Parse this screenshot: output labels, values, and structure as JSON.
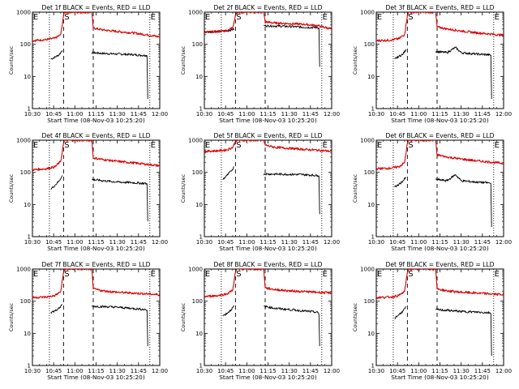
{
  "xticks": [
    "10:30",
    "10:45",
    "11:00",
    "11:15",
    "11:30",
    "11:45",
    "12:00"
  ],
  "yticks": [
    "1",
    "10",
    "100",
    "1000"
  ],
  "ylabel": "Counts/sec",
  "xlabel": "Start Time (08-Nov-03 10:25:20)",
  "marker_labels": [
    "E",
    "S",
    "E"
  ],
  "colors": {
    "events": "#000000",
    "lld": "#dd0000",
    "axes": "#000000",
    "background": "#ffffff"
  },
  "chart_data": [
    {
      "type": "line",
      "title": "Det 1f BLACK = Events, RED = LLD",
      "xlabel": "Start Time (08-Nov-03 10:25:20)",
      "ylabel": "Counts/sec",
      "xrange_min": [
        630,
        720
      ],
      "ylim": [
        1,
        1000
      ],
      "ylog": true,
      "vlines_min": {
        "dotted": [
          642,
          713
        ],
        "dashed": [
          652,
          673
        ]
      },
      "series": [
        {
          "name": "Events",
          "color": "#000000",
          "segments": [
            {
              "x": [
                643,
                646,
                649,
                651
              ],
              "y": [
                35,
                40,
                48,
                65
              ]
            },
            {
              "x": [
                672,
                680,
                690,
                700,
                710,
                711,
                711.5
              ],
              "y": [
                55,
                52,
                50,
                48,
                45,
                44,
                2
              ]
            }
          ]
        },
        {
          "name": "LLD",
          "color": "#dd0000",
          "segments": [
            {
              "x": [
                630,
                640,
                646,
                650,
                652,
                653,
                672,
                673,
                680,
                690,
                700,
                710,
                720
              ],
              "y": [
                130,
                140,
                155,
                200,
                800,
                1000,
                1000,
                320,
                280,
                250,
                230,
                200,
                170
              ]
            }
          ]
        }
      ]
    },
    {
      "type": "line",
      "title": "Det 2f BLACK = Events, RED = LLD",
      "xlabel": "Start Time (08-Nov-03 10:25:20)",
      "ylabel": "Counts/sec",
      "xrange_min": [
        630,
        720
      ],
      "ylim": [
        1,
        1000
      ],
      "ylog": true,
      "vlines_min": {
        "dotted": [
          642,
          713
        ],
        "dashed": [
          652,
          673
        ]
      },
      "series": [
        {
          "name": "Events",
          "color": "#000000",
          "segments": [
            {
              "x": [
                630,
                640,
                646,
                651
              ],
              "y": [
                240,
                250,
                260,
                300
              ]
            },
            {
              "x": [
                672,
                680,
                690,
                700,
                710,
                711,
                711.5
              ],
              "y": [
                380,
                370,
                360,
                340,
                330,
                320,
                20
              ]
            }
          ]
        },
        {
          "name": "LLD",
          "color": "#dd0000",
          "segments": [
            {
              "x": [
                630,
                640,
                646,
                650,
                652,
                653,
                672,
                673,
                680,
                690,
                700,
                710,
                720
              ],
              "y": [
                240,
                250,
                270,
                330,
                800,
                1000,
                1000,
                500,
                460,
                440,
                420,
                380,
                300
              ]
            }
          ]
        }
      ]
    },
    {
      "type": "line",
      "title": "Det 3f BLACK = Events, RED = LLD",
      "xlabel": "Start Time (08-Nov-03 10:25:20)",
      "ylabel": "Counts/sec",
      "xrange_min": [
        630,
        720
      ],
      "ylim": [
        1,
        1000
      ],
      "ylog": true,
      "vlines_min": {
        "dotted": [
          642,
          713
        ],
        "dashed": [
          652,
          673
        ]
      },
      "series": [
        {
          "name": "Events",
          "color": "#000000",
          "segments": [
            {
              "x": [
                643,
                646,
                649,
                651
              ],
              "y": [
                35,
                42,
                50,
                70
              ]
            },
            {
              "x": [
                672,
                680,
                686,
                690,
                700,
                710,
                711,
                711.5
              ],
              "y": [
                60,
                55,
                80,
                55,
                50,
                47,
                45,
                2
              ]
            }
          ]
        },
        {
          "name": "LLD",
          "color": "#dd0000",
          "segments": [
            {
              "x": [
                630,
                640,
                646,
                650,
                652,
                653,
                672,
                673,
                680,
                690,
                700,
                710,
                720
              ],
              "y": [
                130,
                135,
                150,
                200,
                800,
                1000,
                1000,
                350,
                300,
                260,
                230,
                210,
                190
              ]
            }
          ]
        }
      ]
    },
    {
      "type": "line",
      "title": "Det 4f BLACK = Events, RED = LLD",
      "xlabel": "Start Time (08-Nov-03 10:25:20)",
      "ylabel": "Counts/sec",
      "xrange_min": [
        630,
        720
      ],
      "ylim": [
        1,
        1000
      ],
      "ylog": true,
      "vlines_min": {
        "dotted": [
          642,
          713
        ],
        "dashed": [
          652,
          673
        ]
      },
      "series": [
        {
          "name": "Events",
          "color": "#000000",
          "segments": [
            {
              "x": [
                643,
                646,
                649,
                651
              ],
              "y": [
                30,
                40,
                55,
                80
              ]
            },
            {
              "x": [
                672,
                680,
                690,
                700,
                710,
                711,
                711.5
              ],
              "y": [
                60,
                55,
                50,
                48,
                45,
                44,
                3
              ]
            }
          ]
        },
        {
          "name": "LLD",
          "color": "#dd0000",
          "segments": [
            {
              "x": [
                630,
                640,
                646,
                650,
                652,
                653,
                672,
                673,
                680,
                690,
                700,
                710,
                720
              ],
              "y": [
                120,
                130,
                150,
                220,
                800,
                1000,
                1000,
                280,
                250,
                220,
                200,
                180,
                160
              ]
            }
          ]
        }
      ]
    },
    {
      "type": "line",
      "title": "Det 5f BLACK = Events, RED = LLD",
      "xlabel": "Start Time (08-Nov-03 10:25:20)",
      "ylabel": "Counts/sec",
      "xrange_min": [
        630,
        720
      ],
      "ylim": [
        1,
        1000
      ],
      "ylog": true,
      "vlines_min": {
        "dotted": [
          642,
          713
        ],
        "dashed": [
          652,
          673
        ]
      },
      "series": [
        {
          "name": "Events",
          "color": "#000000",
          "segments": [
            {
              "x": [
                643,
                646,
                649,
                651
              ],
              "y": [
                60,
                80,
                110,
                150
              ]
            },
            {
              "x": [
                672,
                680,
                690,
                700,
                710,
                711,
                711.5
              ],
              "y": [
                90,
                88,
                87,
                85,
                80,
                78,
                5
              ]
            }
          ]
        },
        {
          "name": "LLD",
          "color": "#dd0000",
          "segments": [
            {
              "x": [
                630,
                640,
                646,
                650,
                652,
                653,
                672,
                673,
                680,
                690,
                700,
                710,
                720
              ],
              "y": [
                450,
                470,
                500,
                600,
                900,
                1000,
                1000,
                700,
                600,
                560,
                520,
                490,
                450
              ]
            }
          ]
        }
      ]
    },
    {
      "type": "line",
      "title": "Det 6f BLACK = Events, RED = LLD",
      "xlabel": "Start Time (08-Nov-03 10:25:20)",
      "ylabel": "Counts/sec",
      "xrange_min": [
        630,
        720
      ],
      "ylim": [
        1,
        1000
      ],
      "ylog": true,
      "vlines_min": {
        "dotted": [
          642,
          713
        ],
        "dashed": [
          652,
          673
        ]
      },
      "series": [
        {
          "name": "Events",
          "color": "#000000",
          "segments": [
            {
              "x": [
                643,
                646,
                649,
                651
              ],
              "y": [
                35,
                42,
                55,
                70
              ]
            },
            {
              "x": [
                672,
                680,
                686,
                690,
                700,
                710,
                711,
                711.5
              ],
              "y": [
                60,
                55,
                85,
                55,
                50,
                47,
                45,
                2
              ]
            }
          ]
        },
        {
          "name": "LLD",
          "color": "#dd0000",
          "segments": [
            {
              "x": [
                630,
                640,
                646,
                650,
                652,
                653,
                672,
                673,
                680,
                690,
                700,
                710,
                720
              ],
              "y": [
                130,
                135,
                150,
                200,
                800,
                1000,
                1000,
                350,
                300,
                260,
                230,
                210,
                190
              ]
            }
          ]
        }
      ]
    },
    {
      "type": "line",
      "title": "Det 7f BLACK = Events, RED = LLD",
      "xlabel": "Start Time (08-Nov-03 10:25:20)",
      "ylabel": "Counts/sec",
      "xrange_min": [
        630,
        720
      ],
      "ylim": [
        1,
        1000
      ],
      "ylog": true,
      "vlines_min": {
        "dotted": [
          642,
          713
        ],
        "dashed": [
          652,
          673
        ]
      },
      "series": [
        {
          "name": "Events",
          "color": "#000000",
          "segments": [
            {
              "x": [
                643,
                646,
                649,
                651
              ],
              "y": [
                45,
                50,
                60,
                80
              ]
            },
            {
              "x": [
                672,
                680,
                690,
                700,
                710,
                711,
                711.5
              ],
              "y": [
                70,
                68,
                65,
                60,
                55,
                52,
                4
              ]
            }
          ]
        },
        {
          "name": "LLD",
          "color": "#dd0000",
          "segments": [
            {
              "x": [
                630,
                640,
                646,
                650,
                652,
                653,
                672,
                673,
                680,
                690,
                700,
                710,
                720
              ],
              "y": [
                130,
                135,
                150,
                200,
                800,
                1000,
                1000,
                240,
                210,
                190,
                180,
                170,
                160
              ]
            }
          ]
        }
      ]
    },
    {
      "type": "line",
      "title": "Det 8f BLACK = Events, RED = LLD",
      "xlabel": "Start Time (08-Nov-03 10:25:20)",
      "ylabel": "Counts/sec",
      "xrange_min": [
        630,
        720
      ],
      "ylim": [
        1,
        1000
      ],
      "ylog": true,
      "vlines_min": {
        "dotted": [
          642,
          713
        ],
        "dashed": [
          652,
          673
        ]
      },
      "series": [
        {
          "name": "Events",
          "color": "#000000",
          "segments": [
            {
              "x": [
                643,
                646,
                649,
                651
              ],
              "y": [
                35,
                42,
                55,
                70
              ]
            },
            {
              "x": [
                672,
                680,
                690,
                700,
                710,
                711,
                711.5
              ],
              "y": [
                70,
                60,
                55,
                50,
                45,
                40,
                4
              ]
            }
          ]
        },
        {
          "name": "LLD",
          "color": "#dd0000",
          "segments": [
            {
              "x": [
                630,
                640,
                646,
                650,
                652,
                653,
                672,
                673,
                680,
                690,
                700,
                710,
                720
              ],
              "y": [
                140,
                150,
                170,
                220,
                800,
                1000,
                1000,
                260,
                230,
                210,
                200,
                190,
                180
              ]
            }
          ]
        }
      ]
    },
    {
      "type": "line",
      "title": "Det 9f BLACK = Events, RED = LLD",
      "xlabel": "Start Time (08-Nov-03 10:25:20)",
      "ylabel": "Counts/sec",
      "xrange_min": [
        630,
        720
      ],
      "ylim": [
        1,
        1000
      ],
      "ylog": true,
      "vlines_min": {
        "dotted": [
          642,
          713
        ],
        "dashed": [
          652,
          673
        ]
      },
      "series": [
        {
          "name": "Events",
          "color": "#000000",
          "segments": [
            {
              "x": [
                643,
                646,
                649,
                651
              ],
              "y": [
                30,
                38,
                50,
                65
              ]
            },
            {
              "x": [
                672,
                680,
                690,
                700,
                710,
                711,
                711.5
              ],
              "y": [
                55,
                52,
                48,
                46,
                44,
                42,
                2
              ]
            }
          ]
        },
        {
          "name": "LLD",
          "color": "#dd0000",
          "segments": [
            {
              "x": [
                630,
                640,
                646,
                650,
                652,
                653,
                672,
                673,
                680,
                690,
                700,
                710,
                720
              ],
              "y": [
                130,
                135,
                150,
                200,
                800,
                1000,
                1000,
                240,
                210,
                190,
                180,
                170,
                160
              ]
            }
          ]
        }
      ]
    }
  ]
}
